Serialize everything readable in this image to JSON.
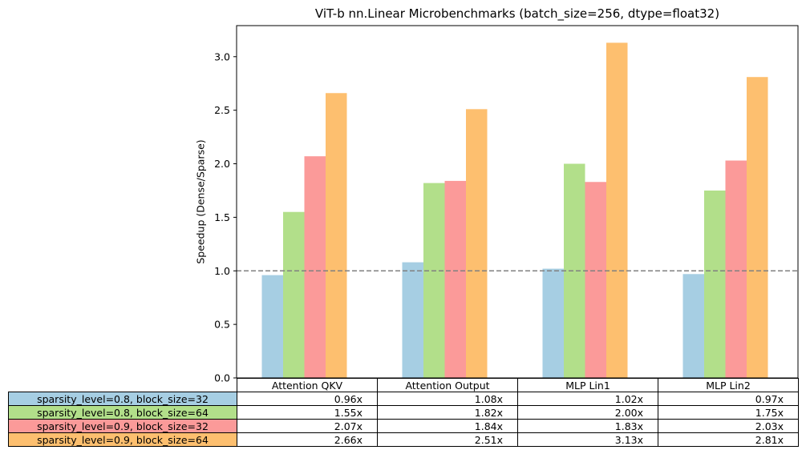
{
  "chart_data": {
    "type": "bar",
    "title": "ViT-b nn.Linear Microbenchmarks (batch_size=256, dtype=float32)",
    "xlabel": "",
    "ylabel": "Speedup (Dense/Sparse)",
    "ylim": [
      0,
      3.29
    ],
    "yticks": [
      "0.0",
      "0.5",
      "1.0",
      "1.5",
      "2.0",
      "2.5",
      "3.0"
    ],
    "categories": [
      "Attention QKV",
      "Attention Output",
      "MLP Lin1",
      "MLP Lin2"
    ],
    "series": [
      {
        "name": "sparsity_level=0.8, block_size=32",
        "color": "#a6cee3",
        "values": [
          0.96,
          1.08,
          1.02,
          0.97
        ],
        "labels": [
          "0.96x",
          "1.08x",
          "1.02x",
          "0.97x"
        ]
      },
      {
        "name": "sparsity_level=0.8, block_size=64",
        "color": "#b2df8a",
        "values": [
          1.55,
          1.82,
          2.0,
          1.75
        ],
        "labels": [
          "1.55x",
          "1.82x",
          "2.00x",
          "1.75x"
        ]
      },
      {
        "name": "sparsity_level=0.9, block_size=32",
        "color": "#fb9a99",
        "values": [
          2.07,
          1.84,
          1.83,
          2.03
        ],
        "labels": [
          "2.07x",
          "1.84x",
          "1.83x",
          "2.03x"
        ]
      },
      {
        "name": "sparsity_level=0.9, block_size=64",
        "color": "#fdbf6f",
        "values": [
          2.66,
          2.51,
          3.13,
          2.81
        ],
        "labels": [
          "2.66x",
          "2.51x",
          "3.13x",
          "2.81x"
        ]
      }
    ],
    "reference_line": {
      "y": 1.0,
      "style": "dashed",
      "color": "#808080"
    },
    "grid": false,
    "legend": "table-below"
  }
}
